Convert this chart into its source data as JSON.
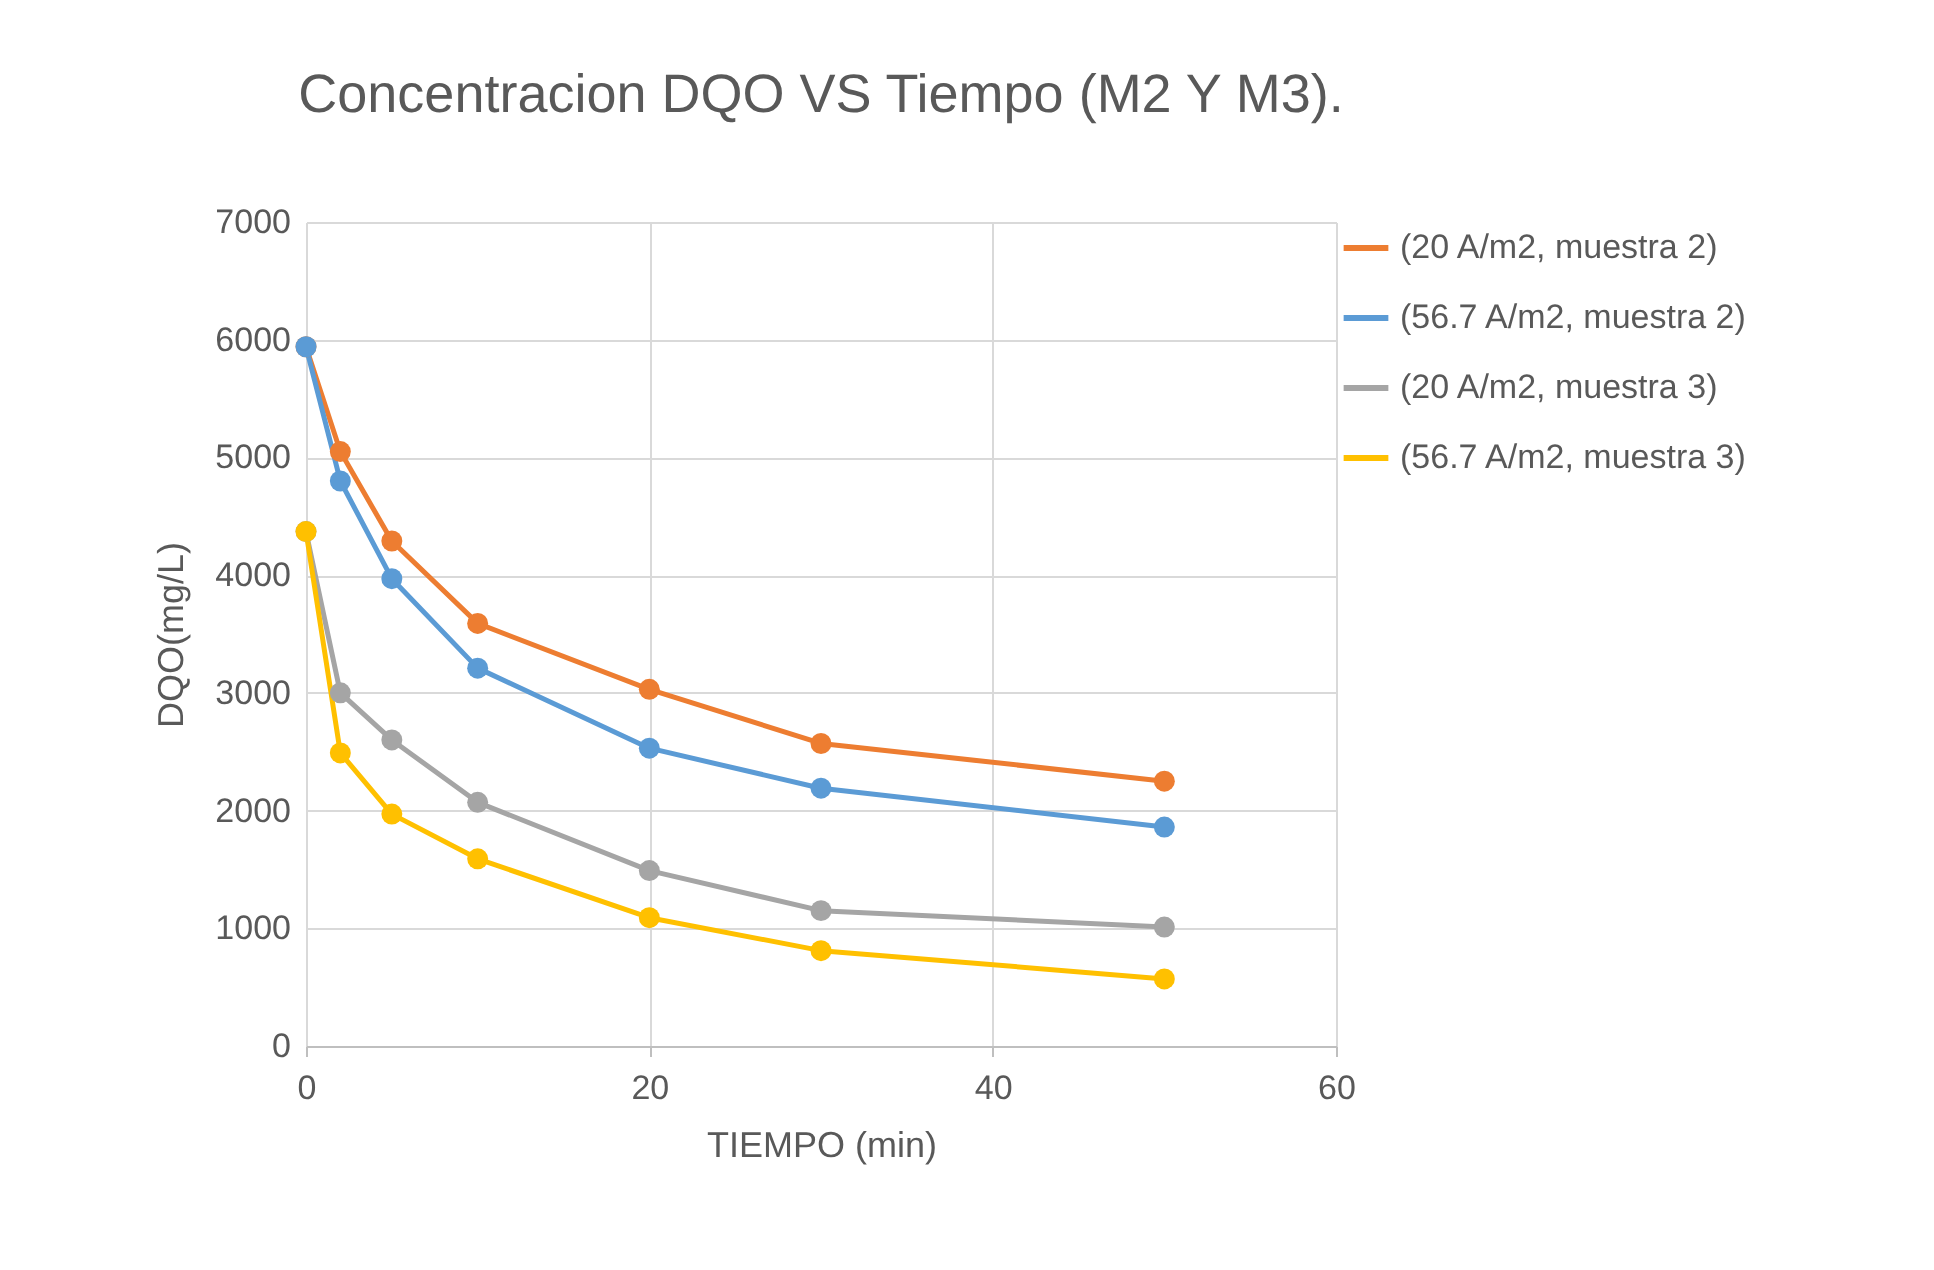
{
  "chart_data": {
    "type": "line",
    "title": "Concentracion DQO VS Tiempo (M2 Y M3).",
    "xlabel": "TIEMPO (min)",
    "ylabel": "DQO(mg/L)",
    "x": [
      0,
      2,
      5,
      10,
      20,
      30,
      50
    ],
    "series": [
      {
        "name": "(20 A/m2, muestra 2)",
        "color": "#ed7d31",
        "values": [
          5940,
          5050,
          4290,
          3590,
          3030,
          2570,
          2250
        ]
      },
      {
        "name": "(56.7 A/m2, muestra 2)",
        "color": "#5b9bd5",
        "values": [
          5940,
          4800,
          3970,
          3210,
          2530,
          2190,
          1860
        ]
      },
      {
        "name": "(20 A/m2, muestra 3)",
        "color": "#a5a5a5",
        "values": [
          4370,
          3000,
          2600,
          2070,
          1490,
          1150,
          1010
        ]
      },
      {
        "name": "(56.7 A/m2, muestra 3)",
        "color": "#ffc000",
        "values": [
          4370,
          2490,
          1970,
          1590,
          1090,
          810,
          570
        ]
      }
    ],
    "xlim": [
      0,
      60
    ],
    "xticks": [
      0,
      20,
      40,
      60
    ],
    "ylim": [
      0,
      7000
    ],
    "yticks": [
      0,
      1000,
      2000,
      3000,
      4000,
      5000,
      6000,
      7000
    ],
    "grid": true,
    "legend": "right",
    "marker": "circle",
    "line_style": "solid"
  }
}
